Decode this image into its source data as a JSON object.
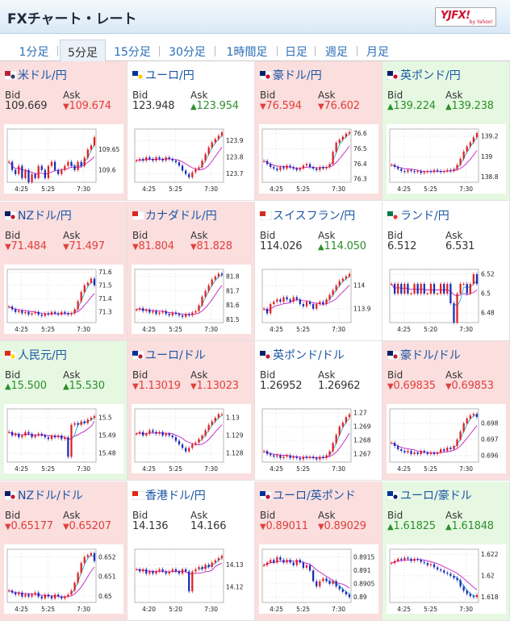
{
  "title": "FXチャート・レート",
  "logo": {
    "mark": "YJFX!",
    "sub": "by Yahoo!"
  },
  "tabs": [
    "1分足",
    "5分足",
    "15分足",
    "30分足",
    "1時間足",
    "日足",
    "週足",
    "月足"
  ],
  "active_tab": "5分足",
  "labels": {
    "bid": "Bid",
    "ask": "Ask"
  },
  "up_mark": "▲",
  "down_mark": "▼",
  "cards": [
    {
      "pair": "米ドル/円",
      "dir": "down",
      "bid": "109.669",
      "ask": "109.674",
      "bid_dir": "flat",
      "ask_dir": "down",
      "flag_colors": [
        "#b22234",
        "#3c3b6e"
      ],
      "chart_data": {
        "type": "line",
        "x_ticks": [
          "4:25",
          "5:25",
          "7:30"
        ],
        "y_ticks": [
          "109.65",
          "109.6"
        ],
        "ylim": [
          109.57,
          109.7
        ],
        "values": [
          109.62,
          109.6,
          109.59,
          109.61,
          109.58,
          109.6,
          109.57,
          109.59,
          109.58,
          109.61,
          109.6,
          109.58,
          109.61,
          109.62,
          109.6,
          109.59,
          109.6,
          109.61,
          109.62,
          109.61,
          109.6,
          109.62,
          109.61,
          109.63,
          109.65,
          109.66,
          109.68
        ]
      }
    },
    {
      "pair": "ユーロ/円",
      "dir": "flat",
      "bid": "123.948",
      "ask": "123.954",
      "bid_dir": "flat",
      "ask_dir": "up",
      "flag_colors": [
        "#003399",
        "#ffcc00"
      ],
      "chart_data": {
        "type": "line",
        "x_ticks": [
          "4:25",
          "5:25",
          "7:30"
        ],
        "y_ticks": [
          "123.9",
          "123.8",
          "123.7"
        ],
        "ylim": [
          123.65,
          123.97
        ],
        "values": [
          123.78,
          123.79,
          123.78,
          123.8,
          123.79,
          123.78,
          123.8,
          123.79,
          123.78,
          123.8,
          123.79,
          123.78,
          123.77,
          123.75,
          123.72,
          123.7,
          123.68,
          123.71,
          123.73,
          123.74,
          123.78,
          123.82,
          123.86,
          123.89,
          123.91,
          123.93,
          123.95
        ]
      }
    },
    {
      "pair": "豪ドル/円",
      "dir": "down",
      "bid": "76.594",
      "ask": "76.602",
      "bid_dir": "down",
      "ask_dir": "down",
      "flag_colors": [
        "#012169",
        "#e4002b"
      ],
      "chart_data": {
        "type": "line",
        "x_ticks": [
          "4:25",
          "5:25",
          "7:30"
        ],
        "y_ticks": [
          "76.6",
          "76.5",
          "76.4",
          "76.3"
        ],
        "ylim": [
          76.28,
          76.63
        ],
        "values": [
          76.42,
          76.4,
          76.38,
          76.37,
          76.36,
          76.38,
          76.37,
          76.39,
          76.38,
          76.37,
          76.36,
          76.37,
          76.39,
          76.4,
          76.38,
          76.37,
          76.36,
          76.38,
          76.37,
          76.38,
          76.4,
          76.48,
          76.54,
          76.56,
          76.58,
          76.6,
          76.61
        ]
      }
    },
    {
      "pair": "英ポンド/円",
      "dir": "up",
      "bid": "139.224",
      "ask": "139.238",
      "bid_dir": "up",
      "ask_dir": "up",
      "flag_colors": [
        "#012169",
        "#c8102e"
      ],
      "chart_data": {
        "type": "line",
        "x_ticks": [
          "4:25",
          "5:25",
          "7:30"
        ],
        "y_ticks": [
          "139.2",
          "139",
          "138.8"
        ],
        "ylim": [
          138.75,
          139.27
        ],
        "values": [
          138.92,
          138.9,
          138.88,
          138.86,
          138.85,
          138.87,
          138.86,
          138.85,
          138.86,
          138.84,
          138.85,
          138.86,
          138.85,
          138.87,
          138.86,
          138.85,
          138.86,
          138.87,
          138.86,
          138.88,
          138.92,
          138.98,
          139.05,
          139.1,
          139.14,
          139.19,
          139.23
        ]
      }
    },
    {
      "pair": "NZドル/円",
      "dir": "down",
      "bid": "71.484",
      "ask": "71.497",
      "bid_dir": "down",
      "ask_dir": "down",
      "flag_colors": [
        "#012169",
        "#cc142b"
      ],
      "chart_data": {
        "type": "line",
        "x_ticks": [
          "4:25",
          "5:25",
          "7:30"
        ],
        "y_ticks": [
          "71.6",
          "71.5",
          "71.4",
          "71.3"
        ],
        "ylim": [
          71.22,
          71.62
        ],
        "values": [
          71.34,
          71.32,
          71.3,
          71.31,
          71.29,
          71.3,
          71.28,
          71.29,
          71.3,
          71.28,
          71.27,
          71.29,
          71.28,
          71.3,
          71.29,
          71.28,
          71.3,
          71.29,
          71.28,
          71.29,
          71.32,
          71.38,
          71.45,
          71.5,
          71.52,
          71.55,
          71.5
        ]
      }
    },
    {
      "pair": "カナダドル/円",
      "dir": "down",
      "bid": "81.804",
      "ask": "81.828",
      "bid_dir": "down",
      "ask_dir": "down",
      "flag_colors": [
        "#d52b1e",
        "#ffffff"
      ],
      "chart_data": {
        "type": "line",
        "x_ticks": [
          "4:25",
          "5:25",
          "7:30"
        ],
        "y_ticks": [
          "81.8",
          "81.7",
          "81.6",
          "81.5"
        ],
        "ylim": [
          81.48,
          81.85
        ],
        "values": [
          81.57,
          81.58,
          81.56,
          81.57,
          81.55,
          81.56,
          81.54,
          81.55,
          81.56,
          81.54,
          81.53,
          81.55,
          81.54,
          81.53,
          81.52,
          81.54,
          81.53,
          81.55,
          81.56,
          81.6,
          81.66,
          81.7,
          81.74,
          81.78,
          81.8,
          81.82,
          81.81
        ]
      }
    },
    {
      "pair": "スイスフラン/円",
      "dir": "flat",
      "bid": "114.026",
      "ask": "114.050",
      "bid_dir": "flat",
      "ask_dir": "up",
      "flag_colors": [
        "#d52b1e",
        "#ffffff"
      ],
      "chart_data": {
        "type": "line",
        "x_ticks": [
          "4:25",
          "5:25",
          "7:30"
        ],
        "y_ticks": [
          "114",
          "113.9"
        ],
        "ylim": [
          113.84,
          114.07
        ],
        "values": [
          113.9,
          113.88,
          113.92,
          113.93,
          113.94,
          113.93,
          113.95,
          113.94,
          113.93,
          113.95,
          113.94,
          113.92,
          113.91,
          113.93,
          113.92,
          113.9,
          113.92,
          113.93,
          113.92,
          113.94,
          113.96,
          113.98,
          114.0,
          114.02,
          114.03,
          114.04,
          114.05
        ]
      }
    },
    {
      "pair": "ランド/円",
      "dir": "flat",
      "bid": "6.512",
      "ask": "6.531",
      "bid_dir": "flat",
      "ask_dir": "flat",
      "flag_colors": [
        "#007a4d",
        "#de3831"
      ],
      "chart_data": {
        "type": "line",
        "x_ticks": [
          "4:25",
          "5:20",
          "7:30"
        ],
        "y_ticks": [
          "6.52",
          "6.5",
          "6.48"
        ],
        "ylim": [
          6.47,
          6.525
        ],
        "values": [
          6.51,
          6.5,
          6.51,
          6.5,
          6.51,
          6.5,
          6.5,
          6.51,
          6.5,
          6.51,
          6.5,
          6.5,
          6.51,
          6.5,
          6.5,
          6.51,
          6.5,
          6.51,
          6.49,
          6.47,
          6.5,
          6.51,
          6.51,
          6.5,
          6.51,
          6.52,
          6.51
        ]
      }
    },
    {
      "pair": "人民元/円",
      "dir": "up",
      "bid": "15.500",
      "ask": "15.530",
      "bid_dir": "up",
      "ask_dir": "up",
      "flag_colors": [
        "#de2910",
        "#ffde00"
      ],
      "chart_data": {
        "type": "line",
        "x_ticks": [
          "4:25",
          "5:25",
          "7:30"
        ],
        "y_ticks": [
          "15.5",
          "15.49",
          "15.48"
        ],
        "ylim": [
          15.475,
          15.505
        ],
        "values": [
          15.492,
          15.49,
          15.491,
          15.489,
          15.49,
          15.492,
          15.491,
          15.489,
          15.49,
          15.491,
          15.49,
          15.489,
          15.488,
          15.49,
          15.489,
          15.49,
          15.488,
          15.489,
          15.478,
          15.496,
          15.497,
          15.496,
          15.498,
          15.497,
          15.499,
          15.5,
          15.501
        ]
      }
    },
    {
      "pair": "ユーロ/ドル",
      "dir": "down",
      "bid": "1.13019",
      "ask": "1.13023",
      "bid_dir": "down",
      "ask_dir": "down",
      "flag_colors": [
        "#003399",
        "#b22234"
      ],
      "chart_data": {
        "type": "line",
        "x_ticks": [
          "4:25",
          "5:25",
          "7:30"
        ],
        "y_ticks": [
          "1.13",
          "1.129",
          "1.128"
        ],
        "ylim": [
          1.1275,
          1.1305
        ],
        "values": [
          1.1291,
          1.1292,
          1.129,
          1.1291,
          1.1293,
          1.1292,
          1.1291,
          1.1292,
          1.129,
          1.1291,
          1.129,
          1.1289,
          1.1287,
          1.1285,
          1.1283,
          1.1281,
          1.1283,
          1.1285,
          1.1286,
          1.1288,
          1.129,
          1.1293,
          1.1296,
          1.1298,
          1.13,
          1.1302,
          1.1302
        ]
      }
    },
    {
      "pair": "英ポンド/ドル",
      "dir": "flat",
      "bid": "1.26952",
      "ask": "1.26962",
      "bid_dir": "flat",
      "ask_dir": "flat",
      "flag_colors": [
        "#012169",
        "#b22234"
      ],
      "chart_data": {
        "type": "line",
        "x_ticks": [
          "4:25",
          "5:25",
          "7:30"
        ],
        "y_ticks": [
          "1.27",
          "1.269",
          "1.268",
          "1.267"
        ],
        "ylim": [
          1.2664,
          1.2703
        ],
        "values": [
          1.2672,
          1.267,
          1.2669,
          1.2668,
          1.2669,
          1.2667,
          1.2668,
          1.2669,
          1.2667,
          1.2668,
          1.2667,
          1.2666,
          1.2668,
          1.2667,
          1.2668,
          1.2667,
          1.2666,
          1.2668,
          1.2667,
          1.2669,
          1.2672,
          1.2678,
          1.2684,
          1.269,
          1.2693,
          1.2697,
          1.2699
        ]
      }
    },
    {
      "pair": "豪ドル/ドル",
      "dir": "down",
      "bid": "0.69835",
      "ask": "0.69853",
      "bid_dir": "down",
      "ask_dir": "down",
      "flag_colors": [
        "#012169",
        "#b22234"
      ],
      "chart_data": {
        "type": "line",
        "x_ticks": [
          "4:25",
          "5:25",
          "7:30"
        ],
        "y_ticks": [
          "0.698",
          "0.697",
          "0.696"
        ],
        "ylim": [
          0.6956,
          0.6989
        ],
        "values": [
          0.6968,
          0.6966,
          0.6964,
          0.6963,
          0.6962,
          0.6963,
          0.6961,
          0.6962,
          0.6961,
          0.6963,
          0.6962,
          0.6961,
          0.6962,
          0.6961,
          0.6962,
          0.6964,
          0.6963,
          0.6965,
          0.6964,
          0.6966,
          0.697,
          0.6975,
          0.698,
          0.6983,
          0.6985,
          0.6986,
          0.6984
        ]
      }
    },
    {
      "pair": "NZドル/ドル",
      "dir": "down",
      "bid": "0.65177",
      "ask": "0.65207",
      "bid_dir": "down",
      "ask_dir": "down",
      "flag_colors": [
        "#012169",
        "#cc142b"
      ],
      "chart_data": {
        "type": "line",
        "x_ticks": [
          "4:25",
          "5:25",
          "7:30"
        ],
        "y_ticks": [
          "0.652",
          "0.651",
          "0.65"
        ],
        "ylim": [
          0.6497,
          0.6524
        ],
        "values": [
          0.6503,
          0.6502,
          0.6501,
          0.6502,
          0.65,
          0.6501,
          0.65,
          0.6501,
          0.6502,
          0.65,
          0.6499,
          0.6501,
          0.65,
          0.6499,
          0.6501,
          0.65,
          0.6499,
          0.65,
          0.6501,
          0.6503,
          0.6507,
          0.6512,
          0.6517,
          0.652,
          0.6521,
          0.6522,
          0.6518
        ]
      }
    },
    {
      "pair": "香港ドル/円",
      "dir": "flat",
      "bid": "14.136",
      "ask": "14.166",
      "bid_dir": "flat",
      "ask_dir": "flat",
      "flag_colors": [
        "#de2910",
        "#ffffff"
      ],
      "chart_data": {
        "type": "line",
        "x_ticks": [
          "4:20",
          "5:20",
          "7:30"
        ],
        "y_ticks": [
          "14.13",
          "14.12"
        ],
        "ylim": [
          14.113,
          14.137
        ],
        "values": [
          14.128,
          14.127,
          14.128,
          14.126,
          14.127,
          14.126,
          14.127,
          14.128,
          14.127,
          14.126,
          14.127,
          14.128,
          14.127,
          14.126,
          14.128,
          14.127,
          14.118,
          14.127,
          14.128,
          14.129,
          14.128,
          14.13,
          14.129,
          14.131,
          14.132,
          14.133,
          14.134
        ]
      }
    },
    {
      "pair": "ユーロ/英ポンド",
      "dir": "down",
      "bid": "0.89011",
      "ask": "0.89029",
      "bid_dir": "down",
      "ask_dir": "down",
      "flag_colors": [
        "#003399",
        "#c8102e"
      ],
      "chart_data": {
        "type": "line",
        "x_ticks": [
          "4:25",
          "5:25",
          "7:30"
        ],
        "y_ticks": [
          "0.8915",
          "0.891",
          "0.8905",
          "0.89"
        ],
        "ylim": [
          0.8898,
          0.8918
        ],
        "values": [
          0.8912,
          0.8913,
          0.8914,
          0.8913,
          0.8915,
          0.8914,
          0.8913,
          0.8914,
          0.8913,
          0.8912,
          0.8914,
          0.8913,
          0.8911,
          0.8912,
          0.891,
          0.8906,
          0.8904,
          0.8906,
          0.8907,
          0.8906,
          0.8905,
          0.8906,
          0.8904,
          0.8903,
          0.8902,
          0.8901,
          0.89
        ]
      }
    },
    {
      "pair": "ユーロ/豪ドル",
      "dir": "up",
      "bid": "1.61825",
      "ask": "1.61848",
      "bid_dir": "up",
      "ask_dir": "up",
      "flag_colors": [
        "#003399",
        "#012169"
      ],
      "chart_data": {
        "type": "line",
        "x_ticks": [
          "4:25",
          "5:25",
          "7:30"
        ],
        "y_ticks": [
          "1.622",
          "1.62",
          "1.618"
        ],
        "ylim": [
          1.6175,
          1.6225
        ],
        "values": [
          1.6212,
          1.6214,
          1.6216,
          1.6215,
          1.6217,
          1.6216,
          1.6214,
          1.6216,
          1.6215,
          1.6213,
          1.6212,
          1.621,
          1.6211,
          1.6208,
          1.6206,
          1.6205,
          1.6203,
          1.6202,
          1.62,
          1.6198,
          1.6196,
          1.619,
          1.6186,
          1.6183,
          1.6181,
          1.618,
          1.6182
        ]
      }
    }
  ]
}
